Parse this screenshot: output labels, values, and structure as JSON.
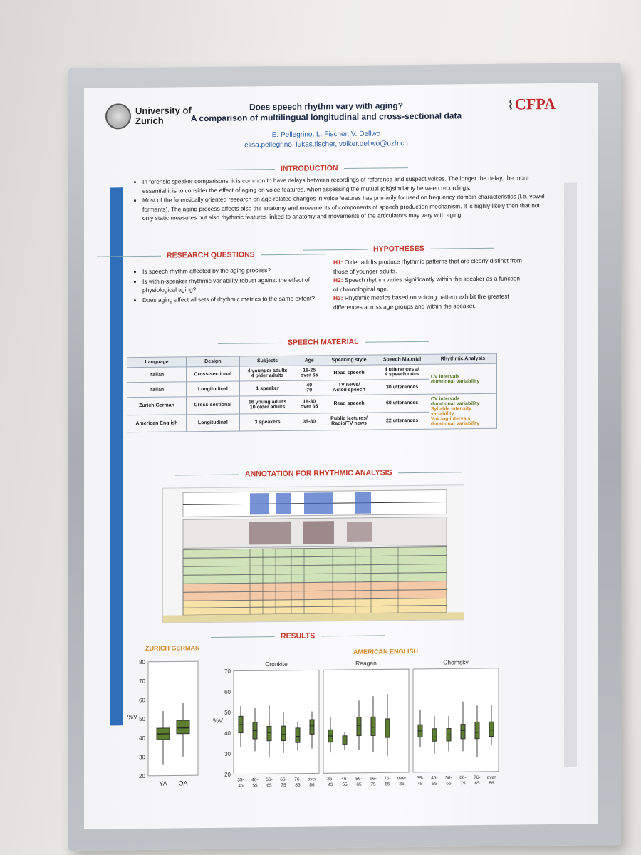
{
  "header": {
    "university": "University of\nZurich",
    "cfpa": "CFPA",
    "title_line1": "Does speech rhythm vary with aging?",
    "title_line2": "A comparison of multilingual longitudinal and cross-sectional data",
    "authors": "E. Pellegrino, L. Fischer, V. Dellwo",
    "emails": "elisa.pellegrino, lukas.fischer, volker.dellwo@uzh.ch"
  },
  "introduction": {
    "heading": "INTRODUCTION",
    "bullets": [
      "In forensic speaker comparisons, it is common to have delays between recordings of reference and suspect voices. The longer the delay, the more essential it is to consider the effect of aging on voice features, when assessing the mutual (dis)similarity between recordings.",
      "Most of the forensically oriented research on age-related changes in voice features has primarily focused on frequency domain characteristics (i.e. vowel formants). The aging process affects also the anatomy and movements of components of speech production mechanism. It is highly likely then that not only static measures but also rhythmic features linked to anatomy and movements of the articulators may vary with aging."
    ]
  },
  "research_questions": {
    "heading": "RESEARCH QUESTIONS",
    "bullets": [
      "Is speech rhythm affected by the aging process?",
      "Is within-speaker rhythmic variability robust against the effect of physiological aging?",
      "Does aging affect all sets of rhythmic metrics to the same extent?"
    ]
  },
  "hypotheses": {
    "heading": "HYPOTHESES",
    "items": [
      {
        "label": "H1:",
        "text": "Older adults produce rhythmic patterns that are clearly distinct from those of younger adults."
      },
      {
        "label": "H2:",
        "text": "Speech rhythm varies significantly within the speaker as a function of chronological age."
      },
      {
        "label": "H3:",
        "text": "Rhythmic metrics based on voicing pattern exhibit the greatest differences across age groups and within the speaker."
      }
    ]
  },
  "speech_material": {
    "heading": "SPEECH MATERIAL",
    "columns": [
      "Language",
      "Design",
      "Subjects",
      "Age",
      "Speaking style",
      "Speech Material",
      "Rhythmic Analysis"
    ],
    "rows": [
      {
        "language": "Italian",
        "design": "Cross-sectional",
        "subjects": "4 younger adults\n4 older adults",
        "age": "18-25\nover 65",
        "style": "Read speech",
        "material": "4 utterances at\n4 speech rates"
      },
      {
        "language": "Italian",
        "design": "Longitudinal",
        "subjects": "1 speaker",
        "age": "40\n79",
        "style": "TV news/\nActed speech",
        "material": "30 utterances"
      },
      {
        "language": "Zurich German",
        "design": "Cross-sectional",
        "subjects": "16 young adults\n10 older adults",
        "age": "18-30\nover 65",
        "style": "Read speech",
        "material": "60 utterances"
      },
      {
        "language": "American English",
        "design": "Longitudinal",
        "subjects": "3 speakers",
        "age": "35-80",
        "style": "Public lectures/\nRadio/TV news",
        "material": "22 utterances"
      }
    ],
    "analysis_1": "CV intervals\ndurational variability",
    "analysis_2a": "CV intervals\ndurational variability",
    "analysis_2b": "Syllable intensity\nvariability",
    "analysis_2c": "Voicing intervals\ndurational variability"
  },
  "annotation": {
    "heading": "ANNOTATION FOR RHYTHMIC ANALYSIS"
  },
  "results": {
    "heading": "RESULTS",
    "zurich_label": "ZURICH GERMAN",
    "american_label": "AMERICAN ENGLISH",
    "speakers": [
      "Cronkite",
      "Reagan",
      "Chomsky"
    ],
    "ylabel": "%V",
    "zurich_groups": [
      "YA",
      "OA"
    ],
    "age_ticks": [
      "35-\n45",
      "46-\n55",
      "56-\n65",
      "66-\n75",
      "76-\n85",
      "over\n86"
    ],
    "zurich_yticks": [
      "80",
      "70",
      "60",
      "50",
      "40",
      "30",
      "20"
    ],
    "ae_yticks": [
      "70",
      "60",
      "50",
      "40",
      "30",
      "20"
    ]
  },
  "chart_data": [
    {
      "type": "box",
      "title": "ZURICH GERMAN",
      "ylabel": "%V",
      "categories": [
        "YA",
        "OA"
      ],
      "ylim": [
        20,
        80
      ],
      "boxes": [
        {
          "name": "YA",
          "min": 26,
          "q1": 39,
          "median": 42,
          "q3": 45,
          "max": 54
        },
        {
          "name": "OA",
          "min": 30,
          "q1": 42,
          "median": 45,
          "q3": 49,
          "max": 58
        }
      ]
    },
    {
      "type": "box",
      "title": "AMERICAN ENGLISH",
      "ylabel": "%V",
      "ylim": [
        20,
        70
      ],
      "categories": [
        "35-45",
        "46-55",
        "56-65",
        "66-75",
        "76-85",
        "over 86"
      ],
      "series": [
        {
          "name": "Cronkite",
          "boxes": [
            [
              33,
              40,
              44,
              48,
              53
            ],
            [
              31,
              37,
              41,
              45,
              52
            ],
            [
              28,
              36,
              40,
              43,
              53
            ],
            [
              30,
              36,
              39,
              43,
              50
            ],
            [
              31,
              35,
              38,
              42,
              45
            ],
            [
              32,
              39,
              43,
              46,
              50
            ]
          ]
        },
        {
          "name": "Reagan",
          "boxes": [
            [
              30,
              35,
              38,
              41,
              47
            ],
            [
              31,
              34,
              36,
              38,
              40
            ],
            [
              31,
              38,
              43,
              47,
              55
            ],
            [
              30,
              38,
              42,
              47,
              57
            ],
            [
              28,
              37,
              42,
              46,
              58
            ],
            [
              0,
              0,
              0,
              0,
              0
            ]
          ]
        },
        {
          "name": "Chomsky",
          "boxes": [
            [
              32,
              37,
              40,
              43,
              50
            ],
            [
              29,
              35,
              37,
              41,
              47
            ],
            [
              30,
              35,
              38,
              41,
              47
            ],
            [
              30,
              36,
              40,
              43,
              54
            ],
            [
              27,
              36,
              39,
              44,
              52
            ],
            [
              33,
              37,
              40,
              44,
              52
            ]
          ]
        }
      ]
    }
  ]
}
